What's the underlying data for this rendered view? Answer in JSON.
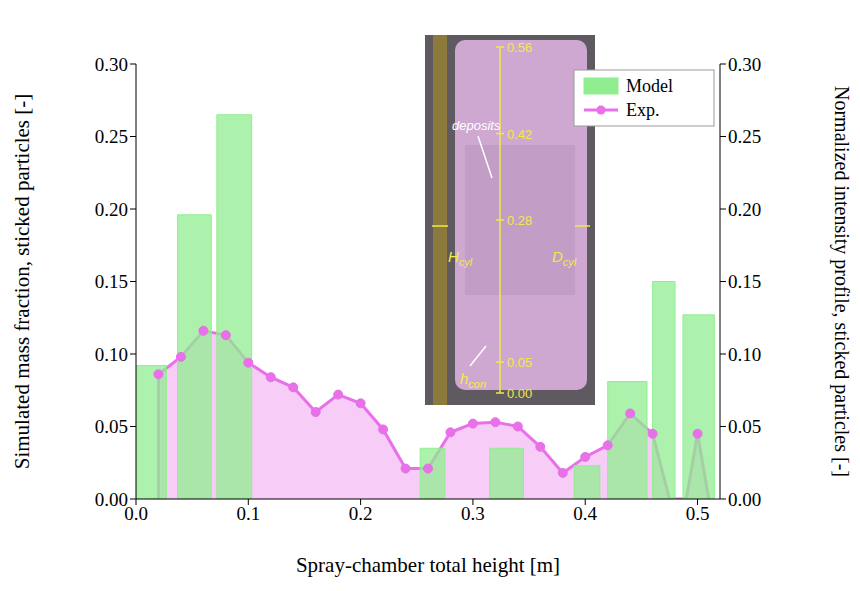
{
  "chart_data": {
    "type": "combo",
    "x_label": "Spray-chamber total height [m]",
    "y_label": "Simulated mass fraction, sticked particles [-]",
    "y2_label": "Normalized intensity profile, sticked particles [-]",
    "xlim": [
      0,
      0.52
    ],
    "xticks": [
      {
        "value": 0,
        "label": "0.0"
      },
      0.1,
      0.2,
      0.3,
      0.4,
      0.5
    ],
    "ylim": [
      0,
      0.3
    ],
    "yticks": [
      {
        "value": 0,
        "label": "0.00"
      },
      0.05,
      {
        "value": 0.1,
        "label": "0.10"
      },
      0.15,
      {
        "value": 0.2,
        "label": "0.20"
      },
      0.25,
      {
        "value": 0.3,
        "label": "0.30"
      }
    ],
    "y2lim": [
      0,
      0.3
    ],
    "y2ticks": [
      {
        "value": 0,
        "label": "0.00"
      },
      0.05,
      {
        "value": 0.1,
        "label": "0.10"
      },
      0.15,
      {
        "value": 0.2,
        "label": "0.20"
      },
      0.25,
      {
        "value": 0.3,
        "label": "0.30"
      }
    ],
    "legend": "upper right",
    "series": [
      {
        "name": "Model",
        "type": "histogram",
        "color": "#90ee90",
        "bins": [
          0,
          0.027,
          0.037,
          0.067,
          0.072,
          0.103,
          0.253,
          0.275,
          0.315,
          0.345,
          0.39,
          0.413,
          0.42,
          0.455,
          0.46,
          0.48,
          0.487,
          0.515
        ],
        "values": [
          0.092,
          0,
          0.196,
          0,
          0.265,
          0,
          0.035,
          0,
          0.035,
          0,
          0.023,
          0,
          0.081,
          0,
          0.15,
          0,
          0.127
        ]
      },
      {
        "name": "Exp.",
        "type": "area",
        "axis": "y2",
        "color": "#e870e8",
        "marker": "circle",
        "x": [
          0.02,
          0.02,
          0.04,
          0.06,
          0.08,
          0.1,
          0.12,
          0.14,
          0.16,
          0.18,
          0.2,
          0.22,
          0.24,
          0.26,
          0.28,
          0.3,
          0.32,
          0.34,
          0.36,
          0.38,
          0.4,
          0.42,
          0.44,
          0.46,
          0.475,
          0.49,
          0.5,
          0.51
        ],
        "values": [
          0,
          0.086,
          0.098,
          0.116,
          0.113,
          0.094,
          0.084,
          0.077,
          0.06,
          0.072,
          0.066,
          0.048,
          0.021,
          0.021,
          0.046,
          0.052,
          0.053,
          0.05,
          0.036,
          0.018,
          0.029,
          0.037,
          0.059,
          0.045,
          0,
          0,
          0.045,
          0
        ]
      }
    ],
    "annotations": [
      {
        "text": "deposits"
      },
      {
        "text": "H",
        "sub": "cyl"
      },
      {
        "text": "D",
        "sub": "cyl"
      },
      {
        "text": "h",
        "sub": "con"
      }
    ],
    "inset_ticks": [
      0.56,
      0.42,
      0.28,
      0.05,
      {
        "value": 0,
        "label": "0.00"
      }
    ]
  }
}
